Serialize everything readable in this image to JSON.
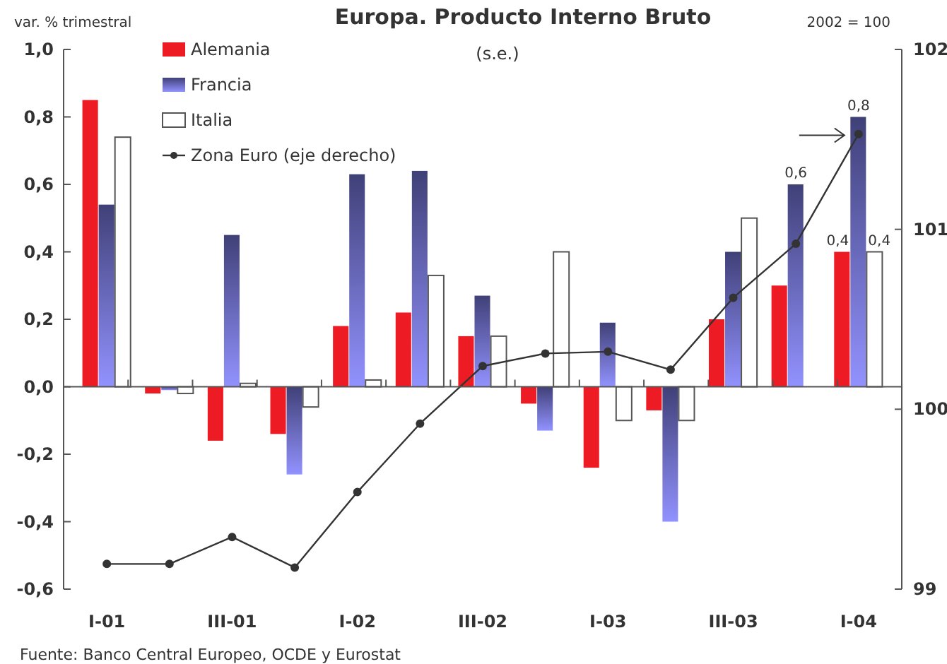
{
  "chart_data": {
    "type": "bar",
    "title": "Europa. Producto Interno Bruto",
    "subtitle": "(s.e.)",
    "ylabel": "var. % trimestral",
    "y2label": "2002 = 100",
    "categories": [
      "I-01",
      null,
      "III-01",
      null,
      "I-02",
      null,
      "III-02",
      null,
      "I-03",
      null,
      "III-03",
      null,
      "I-04"
    ],
    "series": [
      {
        "name": "Alemania",
        "color": "#ed1c24",
        "values": [
          0.85,
          -0.02,
          -0.16,
          -0.14,
          0.18,
          0.22,
          0.15,
          -0.05,
          -0.24,
          -0.07,
          0.2,
          0.3,
          0.4
        ],
        "value_labels": [
          null,
          null,
          null,
          null,
          null,
          null,
          null,
          null,
          null,
          null,
          null,
          null,
          "0,4"
        ]
      },
      {
        "name": "Francia",
        "color": "#5c5cac",
        "values": [
          0.54,
          -0.01,
          0.45,
          -0.26,
          0.63,
          0.64,
          0.27,
          -0.13,
          0.19,
          -0.4,
          0.4,
          0.6,
          0.8
        ],
        "value_labels": [
          null,
          null,
          null,
          null,
          null,
          null,
          null,
          null,
          null,
          null,
          null,
          "0,6",
          "0,8"
        ]
      },
      {
        "name": "Italia",
        "color": "#ffffff",
        "values": [
          0.74,
          -0.02,
          0.01,
          -0.06,
          0.02,
          0.33,
          0.15,
          0.4,
          -0.1,
          -0.1,
          0.5,
          0,
          0.4
        ],
        "value_labels": [
          null,
          null,
          null,
          null,
          null,
          null,
          null,
          null,
          null,
          null,
          null,
          null,
          "0,4"
        ]
      },
      {
        "name": "Zona Euro (eje derecho)",
        "type": "line",
        "axis": "y2",
        "color": "#333333",
        "marker": "circle",
        "line_style": "solid",
        "values": [
          99.14,
          99.14,
          99.29,
          99.12,
          99.54,
          99.92,
          100.24,
          100.31,
          100.32,
          100.22,
          100.62,
          100.92,
          101.53
        ]
      }
    ],
    "ylim": [
      -0.6,
      1.0
    ],
    "yticks": [
      {
        "value": -0.6,
        "label": "-0,6"
      },
      {
        "value": -0.4,
        "label": "-0,4"
      },
      {
        "value": -0.2,
        "label": "-0,2"
      },
      {
        "value": 0,
        "label": "0,0"
      },
      {
        "value": 0.2,
        "label": "0,2"
      },
      {
        "value": 0.4,
        "label": "0,4"
      },
      {
        "value": 0.6,
        "label": "0,6"
      },
      {
        "value": 0.8,
        "label": "0,8"
      },
      {
        "value": 1.0,
        "label": "1,0"
      }
    ],
    "y2lim": [
      99,
      102
    ],
    "y2ticks": [
      99,
      100,
      101,
      102
    ],
    "legend": "top left",
    "annotations": [
      "Fuente: Banco Central Europeo, OCDE y Eurostat"
    ]
  }
}
